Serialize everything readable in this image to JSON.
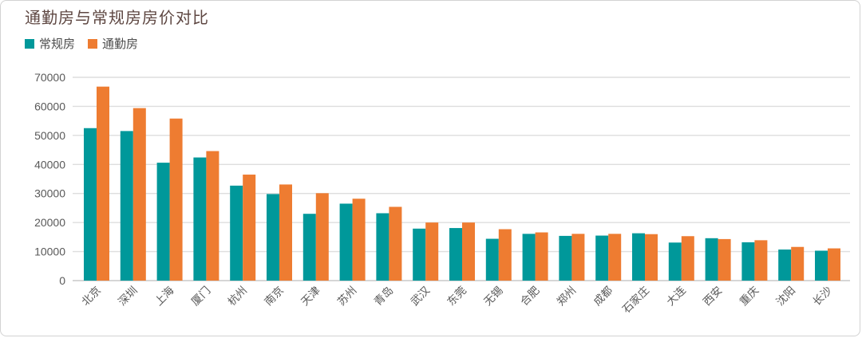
{
  "title": "通勤房与常规房房价对比",
  "legend": {
    "items": [
      {
        "label": "常规房",
        "color": "#00989A"
      },
      {
        "label": "通勤房",
        "color": "#EE7C31"
      }
    ]
  },
  "colors": {
    "regular_series": "#00989A",
    "commute_series": "#EE7C31",
    "gridline": "#dedede",
    "axis_line": "#c9c9c9",
    "axis_text": "#595959",
    "title_text": "#5e4742",
    "card_border": "#d2d2d2"
  },
  "chart_data": {
    "type": "bar",
    "title": "通勤房与常规房房价对比",
    "xlabel": "",
    "ylabel": "",
    "ylim": [
      0,
      70000
    ],
    "ytick_step": 10000,
    "ytick_labels": [
      "0",
      "10000",
      "20000",
      "30000",
      "40000",
      "50000",
      "60000",
      "70000"
    ],
    "grid": true,
    "legend_position": "top-left",
    "categories": [
      "北京",
      "深圳",
      "上海",
      "厦门",
      "杭州",
      "南京",
      "天津",
      "苏州",
      "青岛",
      "武汉",
      "东莞",
      "无锡",
      "合肥",
      "郑州",
      "成都",
      "石家庄",
      "大连",
      "西安",
      "重庆",
      "沈阳",
      "长沙"
    ],
    "series": [
      {
        "name": "常规房",
        "color": "#00989A",
        "values": [
          52500,
          51500,
          40600,
          42400,
          32700,
          29800,
          23000,
          26500,
          23200,
          17900,
          18100,
          14400,
          16100,
          15400,
          15500,
          16300,
          13100,
          14600,
          13200,
          10700,
          10300
        ]
      },
      {
        "name": "通勤房",
        "color": "#EE7C31",
        "values": [
          66800,
          59400,
          55800,
          44600,
          36500,
          33100,
          30100,
          28200,
          25400,
          20000,
          20000,
          17700,
          16600,
          16100,
          16100,
          16000,
          15300,
          14300,
          13900,
          11600,
          11100
        ]
      }
    ]
  }
}
